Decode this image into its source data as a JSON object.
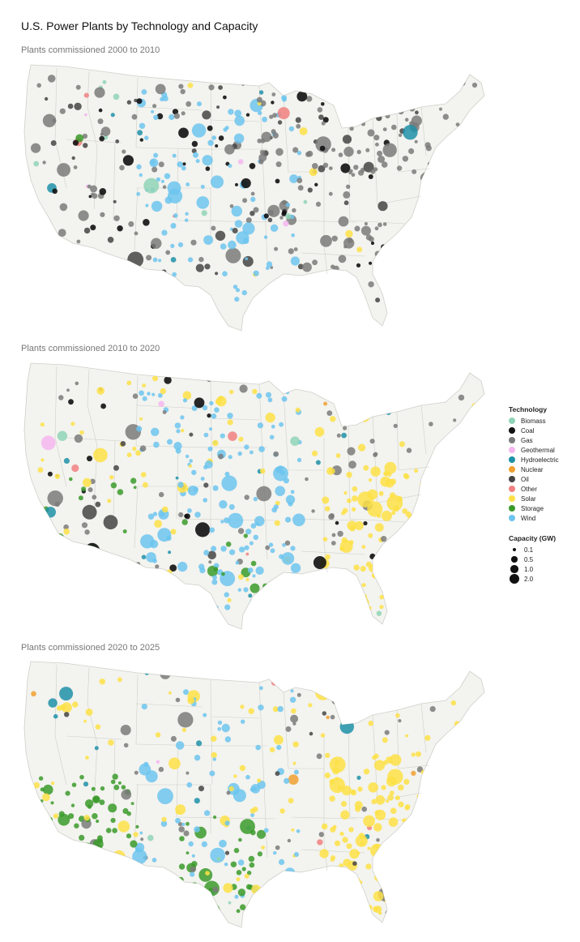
{
  "title": "U.S. Power Plants by Technology and Capacity",
  "panels": [
    {
      "subtitle": "Plants commissioned 2000 to 2010",
      "mix": {
        "Gas": 0.44,
        "Wind": 0.22,
        "Coal": 0.13,
        "Oil": 0.1,
        "Solar": 0.03,
        "Hydroelectric": 0.03,
        "Biomass": 0.02,
        "Other": 0.015,
        "Geothermal": 0.01,
        "Storage": 0.005
      }
    },
    {
      "subtitle": "Plants commissioned 2010 to 2020",
      "mix": {
        "Solar": 0.4,
        "Wind": 0.25,
        "Gas": 0.17,
        "Storage": 0.04,
        "Coal": 0.04,
        "Hydroelectric": 0.04,
        "Biomass": 0.02,
        "Oil": 0.02,
        "Geothermal": 0.01,
        "Other": 0.005,
        "Nuclear": 0.005
      }
    },
    {
      "subtitle": "Plants commissioned 2020 to 2025",
      "mix": {
        "Solar": 0.48,
        "Storage": 0.2,
        "Wind": 0.15,
        "Gas": 0.09,
        "Oil": 0.03,
        "Hydroelectric": 0.02,
        "Biomass": 0.015,
        "Geothermal": 0.005,
        "Other": 0.005,
        "Nuclear": 0.005
      }
    }
  ],
  "legend": {
    "technology_title": "Technology",
    "technologies": [
      {
        "name": "Biomass",
        "color": "#8fd3b6"
      },
      {
        "name": "Coal",
        "color": "#111111"
      },
      {
        "name": "Gas",
        "color": "#7a7a7a"
      },
      {
        "name": "Geothermal",
        "color": "#f5b6f0"
      },
      {
        "name": "Hydroelectric",
        "color": "#1e90a8"
      },
      {
        "name": "Nuclear",
        "color": "#f0a030"
      },
      {
        "name": "Oil",
        "color": "#444444"
      },
      {
        "name": "Other",
        "color": "#f08080"
      },
      {
        "name": "Solar",
        "color": "#fde047"
      },
      {
        "name": "Storage",
        "color": "#3a9a2a"
      },
      {
        "name": "Wind",
        "color": "#6cc4ee"
      }
    ],
    "capacity_title": "Capacity (GW)",
    "capacities": [
      {
        "label": "0.1",
        "value": 0.1
      },
      {
        "label": "0.5",
        "value": 0.5
      },
      {
        "label": "1.0",
        "value": 1.0
      },
      {
        "label": "2.0",
        "value": 2.0
      }
    ]
  },
  "colors": {
    "land": "#f3f3ef",
    "border": "#cfcfca"
  }
}
